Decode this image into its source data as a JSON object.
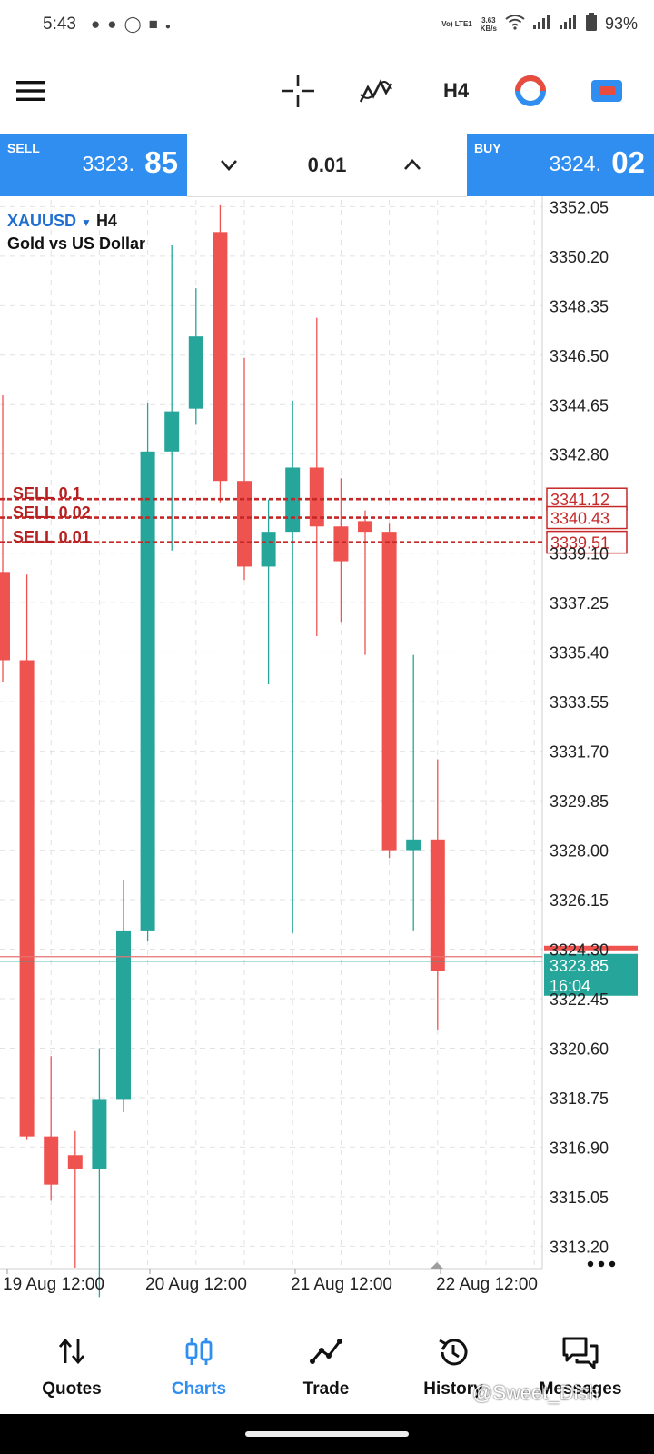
{
  "status_bar": {
    "time": "5:43",
    "network": "Vo) LTE1",
    "speed_value": "3.63",
    "speed_unit": "KB/s",
    "battery": "93%"
  },
  "toolbar": {
    "menu_icon": "menu-icon",
    "crosshair_icon": "crosshair-icon",
    "indicators_icon": "indicators-icon",
    "timeframe": "H4",
    "timer_icon": "timer-icon",
    "objects_icon": "objects-icon"
  },
  "trade_bar": {
    "sell_label": "SELL",
    "sell_price_main": "3323.",
    "sell_price_big": "85",
    "lot_size": "0.01",
    "buy_label": "BUY",
    "buy_price_main": "3324.",
    "buy_price_big": "02"
  },
  "chart_header": {
    "symbol": "XAUUSD",
    "timeframe": "H4",
    "description": "Gold vs US Dollar"
  },
  "chart_data": {
    "type": "candlestick",
    "y_ticks": [
      "3352.05",
      "3350.20",
      "3348.35",
      "3346.50",
      "3344.65",
      "3342.80",
      "3339.10",
      "3337.25",
      "3335.40",
      "3333.55",
      "3331.70",
      "3329.85",
      "3328.00",
      "3326.15",
      "3324.30",
      "3322.45",
      "3320.60",
      "3318.75",
      "3316.90",
      "3315.05",
      "3313.20"
    ],
    "ylim": [
      3312.5,
      3352.3
    ],
    "x_labels": [
      "19 Aug 12:00",
      "20 Aug 12:00",
      "21 Aug 12:00",
      "22 Aug 12:00"
    ],
    "candles": [
      {
        "o": 3338.4,
        "h": 3345.0,
        "l": 3334.3,
        "c": 3335.1
      },
      {
        "o": 3335.1,
        "h": 3338.3,
        "l": 3317.2,
        "c": 3317.3
      },
      {
        "o": 3317.3,
        "h": 3320.3,
        "l": 3314.9,
        "c": 3315.5
      },
      {
        "o": 3316.6,
        "h": 3317.5,
        "l": 3312.4,
        "c": 3316.1
      },
      {
        "o": 3316.1,
        "h": 3320.6,
        "l": 3311.3,
        "c": 3318.7
      },
      {
        "o": 3318.7,
        "h": 3326.9,
        "l": 3318.2,
        "c": 3325.0
      },
      {
        "o": 3325.0,
        "h": 3344.7,
        "l": 3324.6,
        "c": 3342.9
      },
      {
        "o": 3342.9,
        "h": 3350.6,
        "l": 3339.2,
        "c": 3344.4
      },
      {
        "o": 3344.5,
        "h": 3349.0,
        "l": 3343.9,
        "c": 3347.2
      },
      {
        "o": 3351.1,
        "h": 3352.1,
        "l": 3341.0,
        "c": 3341.8
      },
      {
        "o": 3341.8,
        "h": 3346.4,
        "l": 3338.1,
        "c": 3338.6
      },
      {
        "o": 3338.6,
        "h": 3341.1,
        "l": 3334.2,
        "c": 3339.9
      },
      {
        "o": 3339.9,
        "h": 3344.8,
        "l": 3324.9,
        "c": 3342.3
      },
      {
        "o": 3342.3,
        "h": 3347.9,
        "l": 3336.0,
        "c": 3340.1
      },
      {
        "o": 3340.1,
        "h": 3341.9,
        "l": 3336.5,
        "c": 3338.8
      },
      {
        "o": 3340.3,
        "h": 3340.7,
        "l": 3335.3,
        "c": 3339.9
      },
      {
        "o": 3339.9,
        "h": 3340.2,
        "l": 3327.7,
        "c": 3328.0
      },
      {
        "o": 3328.0,
        "h": 3335.3,
        "l": 3325.0,
        "c": 3328.4
      },
      {
        "o": 3328.4,
        "h": 3331.4,
        "l": 3321.3,
        "c": 3323.5
      }
    ],
    "order_lines": [
      {
        "label": "SELL 0.1",
        "price": "3341.12",
        "value": 3341.12
      },
      {
        "label": "SELL 0.02",
        "price": "3340.43",
        "value": 3340.43
      },
      {
        "label": "SELL 0.01",
        "price": "3339.51",
        "value": 3339.51
      }
    ],
    "bid": {
      "price": "3323.85",
      "value": 3323.85,
      "countdown": "16:04"
    },
    "ask_value": 3324.02,
    "colors": {
      "bull": "#26a69a",
      "bear": "#ef5350",
      "order": "#c62828",
      "grid": "#e2e2e2"
    }
  },
  "bottom_nav": {
    "items": [
      {
        "label": "Quotes",
        "icon": "quotes-icon"
      },
      {
        "label": "Charts",
        "icon": "charts-icon"
      },
      {
        "label": "Trade",
        "icon": "trade-icon"
      },
      {
        "label": "History",
        "icon": "history-icon"
      },
      {
        "label": "Messages",
        "icon": "messages-icon"
      }
    ]
  },
  "watermark": "@Sweet_Dish"
}
